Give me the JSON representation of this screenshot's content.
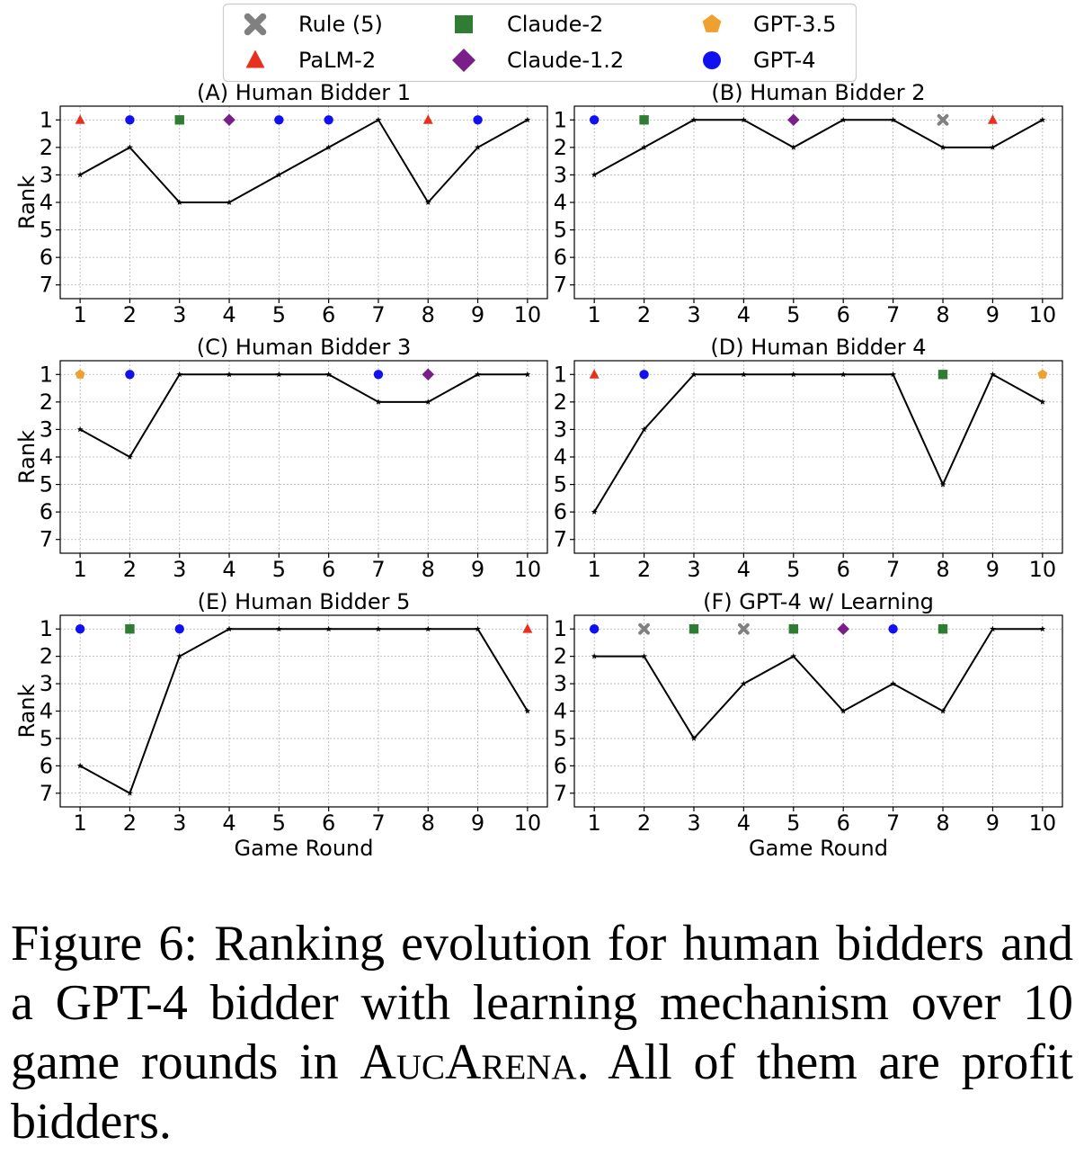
{
  "legend": {
    "entries": [
      {
        "name": "Rule (5)",
        "marker": "x",
        "color": "#808080"
      },
      {
        "name": "Claude-2",
        "marker": "square",
        "color": "#2e7d32"
      },
      {
        "name": "GPT-3.5",
        "marker": "pentagon",
        "color": "#f0a030"
      },
      {
        "name": "PaLM-2",
        "marker": "triangle",
        "color": "#e8301f"
      },
      {
        "name": "Claude-1.2",
        "marker": "diamond",
        "color": "#7a1f8a"
      },
      {
        "name": "GPT-4",
        "marker": "circle",
        "color": "#1010f0"
      }
    ]
  },
  "chart_data": [
    {
      "type": "line",
      "title": "(A) Human Bidder 1",
      "xlabel": "",
      "ylabel": "Rank",
      "x": [
        1,
        2,
        3,
        4,
        5,
        6,
        7,
        8,
        9,
        10
      ],
      "xlim": [
        0.6,
        10.4
      ],
      "ylim": [
        7.5,
        0.5
      ],
      "yticks": [
        1,
        2,
        3,
        4,
        5,
        6,
        7
      ],
      "grid": true,
      "rank": [
        3,
        2,
        4,
        4,
        3,
        2,
        1,
        4,
        2,
        1
      ],
      "winners": [
        "PaLM-2",
        "GPT-4",
        "Claude-2",
        "Claude-1.2",
        "GPT-4",
        "GPT-4",
        "",
        "PaLM-2",
        "GPT-4",
        ""
      ]
    },
    {
      "type": "line",
      "title": "(B) Human Bidder 2",
      "xlabel": "",
      "ylabel": "",
      "x": [
        1,
        2,
        3,
        4,
        5,
        6,
        7,
        8,
        9,
        10
      ],
      "xlim": [
        0.6,
        10.4
      ],
      "ylim": [
        7.5,
        0.5
      ],
      "yticks": [
        1,
        2,
        3,
        4,
        5,
        6,
        7
      ],
      "grid": true,
      "rank": [
        3,
        2,
        1,
        1,
        2,
        1,
        1,
        2,
        2,
        1
      ],
      "winners": [
        "GPT-4",
        "Claude-2",
        "",
        "",
        "Claude-1.2",
        "",
        "",
        "Rule (5)",
        "PaLM-2",
        ""
      ]
    },
    {
      "type": "line",
      "title": "(C) Human Bidder 3",
      "xlabel": "",
      "ylabel": "Rank",
      "x": [
        1,
        2,
        3,
        4,
        5,
        6,
        7,
        8,
        9,
        10
      ],
      "xlim": [
        0.6,
        10.4
      ],
      "ylim": [
        7.5,
        0.5
      ],
      "yticks": [
        1,
        2,
        3,
        4,
        5,
        6,
        7
      ],
      "grid": true,
      "rank": [
        3,
        4,
        1,
        1,
        1,
        1,
        2,
        2,
        1,
        1
      ],
      "winners": [
        "GPT-3.5",
        "GPT-4",
        "",
        "",
        "",
        "",
        "GPT-4",
        "Claude-1.2",
        "",
        ""
      ]
    },
    {
      "type": "line",
      "title": "(D) Human Bidder 4",
      "xlabel": "",
      "ylabel": "",
      "x": [
        1,
        2,
        3,
        4,
        5,
        6,
        7,
        8,
        9,
        10
      ],
      "xlim": [
        0.6,
        10.4
      ],
      "ylim": [
        7.5,
        0.5
      ],
      "yticks": [
        1,
        2,
        3,
        4,
        5,
        6,
        7
      ],
      "grid": true,
      "rank": [
        6,
        3,
        1,
        1,
        1,
        1,
        1,
        5,
        1,
        2
      ],
      "winners": [
        "PaLM-2",
        "GPT-4",
        "",
        "",
        "",
        "",
        "",
        "Claude-2",
        "",
        "GPT-3.5"
      ]
    },
    {
      "type": "line",
      "title": "(E) Human Bidder 5",
      "xlabel": "Game Round",
      "ylabel": "Rank",
      "x": [
        1,
        2,
        3,
        4,
        5,
        6,
        7,
        8,
        9,
        10
      ],
      "xlim": [
        0.6,
        10.4
      ],
      "ylim": [
        7.5,
        0.5
      ],
      "yticks": [
        1,
        2,
        3,
        4,
        5,
        6,
        7
      ],
      "grid": true,
      "rank": [
        6,
        7,
        2,
        1,
        1,
        1,
        1,
        1,
        1,
        4
      ],
      "winners": [
        "GPT-4",
        "Claude-2",
        "GPT-4",
        "",
        "",
        "",
        "",
        "",
        "",
        "PaLM-2"
      ]
    },
    {
      "type": "line",
      "title": "(F) GPT-4 w/ Learning",
      "xlabel": "Game Round",
      "ylabel": "",
      "x": [
        1,
        2,
        3,
        4,
        5,
        6,
        7,
        8,
        9,
        10
      ],
      "xlim": [
        0.6,
        10.4
      ],
      "ylim": [
        7.5,
        0.5
      ],
      "yticks": [
        1,
        2,
        3,
        4,
        5,
        6,
        7
      ],
      "grid": true,
      "rank": [
        2,
        2,
        5,
        3,
        2,
        4,
        3,
        4,
        1,
        1
      ],
      "winners": [
        "GPT-4",
        "Rule (5)",
        "Claude-2",
        "Rule (5)",
        "Claude-2",
        "Claude-1.2",
        "GPT-4",
        "Claude-2",
        "",
        ""
      ]
    }
  ],
  "caption": {
    "lead": "Figure 6: Ranking evolution for human bidders and a GPT-4 bidder with learning mechanism over 10 game rounds in ",
    "name": "AucArena",
    "tail": ". All of them are profit bidders."
  }
}
